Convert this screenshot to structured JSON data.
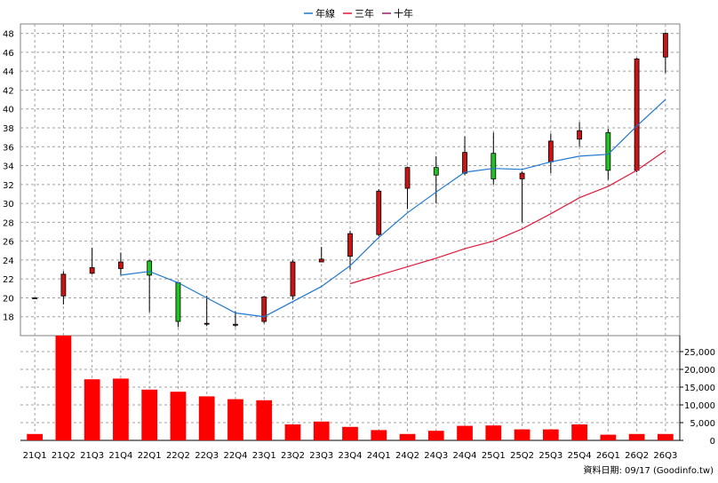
{
  "legend": [
    {
      "label": "年線",
      "color": "#1f78d1"
    },
    {
      "label": "三年",
      "color": "#e0193a"
    },
    {
      "label": "十年",
      "color": "#9a1a6a"
    }
  ],
  "source_note": "資料日期: 09/17  (Goodinfo.tw)",
  "colors": {
    "up": "#c81414",
    "down": "#22c222",
    "volume": "#ff0000",
    "grid": "#a0a0a0",
    "year_line": "#1f78d1",
    "three_year_line": "#e0193a"
  },
  "chart_data": [
    {
      "type": "candlestick",
      "categories": [
        "21Q1",
        "21Q2",
        "21Q3",
        "21Q4",
        "22Q1",
        "22Q2",
        "22Q3",
        "22Q4",
        "23Q1",
        "23Q2",
        "23Q3",
        "23Q4",
        "24Q1",
        "24Q2",
        "24Q3",
        "24Q4",
        "25Q1",
        "25Q2",
        "25Q3",
        "25Q4",
        "26Q1",
        "26Q2",
        "26Q3"
      ],
      "ylim": [
        16,
        49
      ],
      "yticks": [
        18,
        20,
        22,
        24,
        26,
        28,
        30,
        32,
        34,
        36,
        38,
        40,
        42,
        44,
        46,
        48
      ],
      "ohlc": [
        {
          "o": 20.0,
          "h": 20.0,
          "l": 20.0,
          "c": 20.0
        },
        {
          "o": 20.2,
          "h": 22.8,
          "l": 19.3,
          "c": 22.5
        },
        {
          "o": 22.6,
          "h": 25.3,
          "l": 22.5,
          "c": 23.2
        },
        {
          "o": 23.1,
          "h": 24.8,
          "l": 22.4,
          "c": 23.8
        },
        {
          "o": 23.9,
          "h": 24.0,
          "l": 18.5,
          "c": 22.4
        },
        {
          "o": 21.6,
          "h": 21.6,
          "l": 16.9,
          "c": 17.5
        },
        {
          "o": 17.3,
          "h": 20.2,
          "l": 17.0,
          "c": 17.3
        },
        {
          "o": 17.1,
          "h": 18.6,
          "l": 16.9,
          "c": 17.2
        },
        {
          "o": 17.5,
          "h": 20.2,
          "l": 17.3,
          "c": 20.1
        },
        {
          "o": 20.2,
          "h": 24.0,
          "l": 19.8,
          "c": 23.8
        },
        {
          "o": 23.8,
          "h": 25.4,
          "l": 23.8,
          "c": 24.1
        },
        {
          "o": 24.4,
          "h": 27.1,
          "l": 23.0,
          "c": 26.8
        },
        {
          "o": 26.7,
          "h": 31.5,
          "l": 26.5,
          "c": 31.3
        },
        {
          "o": 31.6,
          "h": 33.9,
          "l": 29.4,
          "c": 33.8
        },
        {
          "o": 33.8,
          "h": 35.0,
          "l": 30.0,
          "c": 33.0
        },
        {
          "o": 33.2,
          "h": 37.1,
          "l": 33.0,
          "c": 35.4
        },
        {
          "o": 35.3,
          "h": 37.5,
          "l": 32.0,
          "c": 32.6
        },
        {
          "o": 32.6,
          "h": 33.4,
          "l": 28.0,
          "c": 33.2
        },
        {
          "o": 34.4,
          "h": 37.4,
          "l": 33.2,
          "c": 36.6
        },
        {
          "o": 36.8,
          "h": 38.6,
          "l": 36.0,
          "c": 37.7
        },
        {
          "o": 37.5,
          "h": 37.9,
          "l": 32.5,
          "c": 33.5
        },
        {
          "o": 33.5,
          "h": 45.4,
          "l": 33.3,
          "c": 45.3
        },
        {
          "o": 45.5,
          "h": 48.1,
          "l": 43.8,
          "c": 48.0
        }
      ],
      "series": [
        {
          "name": "年線",
          "values": [
            null,
            null,
            null,
            22.4,
            22.8,
            21.6,
            20.0,
            18.4,
            18.0,
            19.6,
            21.2,
            23.4,
            26.4,
            29.0,
            31.2,
            33.3,
            33.7,
            33.6,
            34.4,
            35.0,
            35.2,
            38.2,
            41.0
          ]
        },
        {
          "name": "三年",
          "values": [
            null,
            null,
            null,
            null,
            null,
            null,
            null,
            null,
            null,
            null,
            null,
            21.5,
            22.4,
            23.3,
            24.2,
            25.2,
            26.0,
            27.3,
            28.9,
            30.6,
            31.8,
            33.5,
            35.6
          ]
        }
      ]
    },
    {
      "type": "bar",
      "categories": [
        "21Q1",
        "21Q2",
        "21Q3",
        "21Q4",
        "22Q1",
        "22Q2",
        "22Q3",
        "22Q4",
        "23Q1",
        "23Q2",
        "23Q3",
        "23Q4",
        "24Q1",
        "24Q2",
        "24Q3",
        "24Q4",
        "25Q1",
        "25Q2",
        "25Q3",
        "25Q4",
        "26Q1",
        "26Q2",
        "26Q3"
      ],
      "values": [
        1800,
        29500,
        17200,
        17400,
        14300,
        13700,
        12400,
        11600,
        11300,
        4500,
        5300,
        3800,
        2900,
        1800,
        2700,
        4100,
        4200,
        3100,
        3100,
        4500,
        1600,
        1800,
        1800
      ],
      "ylim": [
        0,
        29500
      ],
      "yticks": [
        0,
        5000,
        10000,
        15000,
        20000,
        25000
      ],
      "ytick_labels": [
        "0",
        "5,000",
        "10,000",
        "15,000",
        "20,000",
        "25,000"
      ]
    }
  ]
}
